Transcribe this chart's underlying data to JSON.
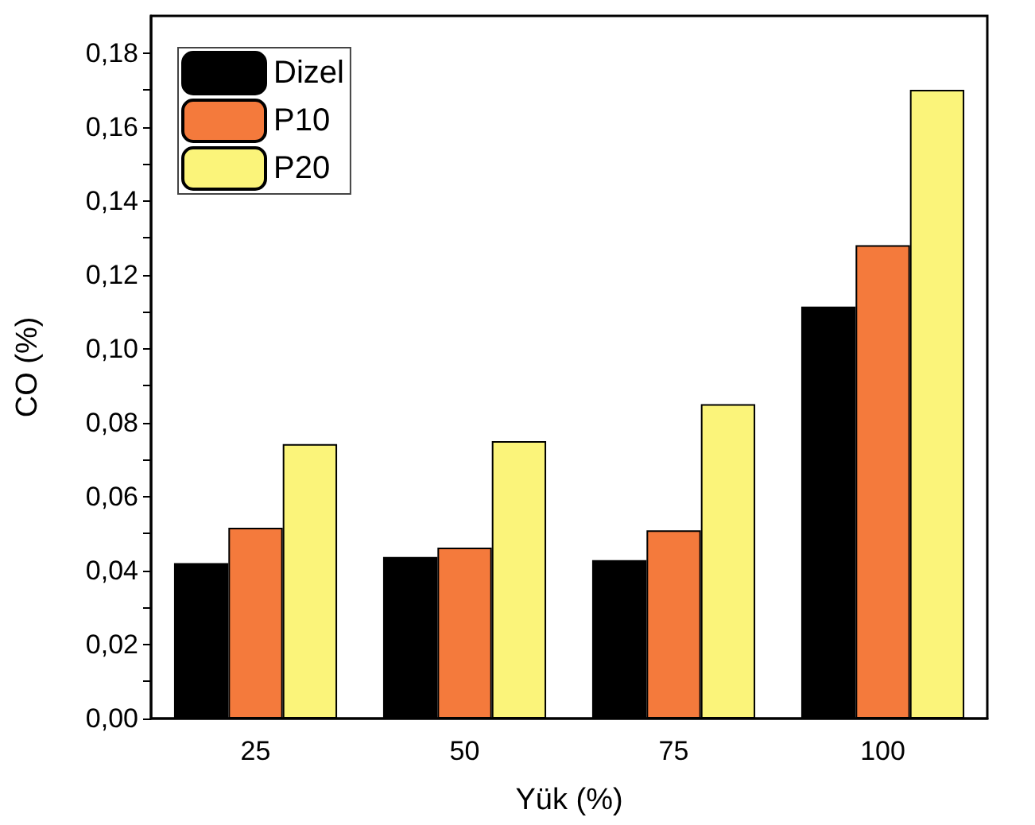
{
  "chart_data": {
    "type": "bar",
    "xlabel": "Yük (%)",
    "ylabel": "CO (%)",
    "categories": [
      "25",
      "50",
      "75",
      "100"
    ],
    "series": [
      {
        "name": "Dizel",
        "color": "#000000",
        "values": [
          0.042,
          0.0437,
          0.0428,
          0.1114
        ]
      },
      {
        "name": "P10",
        "color": "#f47a3c",
        "values": [
          0.0516,
          0.0462,
          0.0509,
          0.128
        ]
      },
      {
        "name": "P20",
        "color": "#fbf47a",
        "values": [
          0.0742,
          0.075,
          0.085,
          0.17
        ]
      }
    ],
    "ylim": [
      0,
      0.19
    ],
    "yticks": [
      {
        "value": 0,
        "label": "0,00"
      },
      {
        "value": 0.01,
        "label": null
      },
      {
        "value": 0.02,
        "label": "0,02"
      },
      {
        "value": 0.03,
        "label": null
      },
      {
        "value": 0.04,
        "label": "0,04"
      },
      {
        "value": 0.05,
        "label": null
      },
      {
        "value": 0.06,
        "label": "0,06"
      },
      {
        "value": 0.07,
        "label": null
      },
      {
        "value": 0.08,
        "label": "0,08"
      },
      {
        "value": 0.09,
        "label": null
      },
      {
        "value": 0.1,
        "label": "0,10"
      },
      {
        "value": 0.11,
        "label": null
      },
      {
        "value": 0.12,
        "label": "0,12"
      },
      {
        "value": 0.13,
        "label": null
      },
      {
        "value": 0.14,
        "label": "0,14"
      },
      {
        "value": 0.15,
        "label": null
      },
      {
        "value": 0.16,
        "label": "0,16"
      },
      {
        "value": 0.17,
        "label": null
      },
      {
        "value": 0.18,
        "label": "0,18"
      }
    ],
    "grid": false,
    "legend": "top left"
  }
}
